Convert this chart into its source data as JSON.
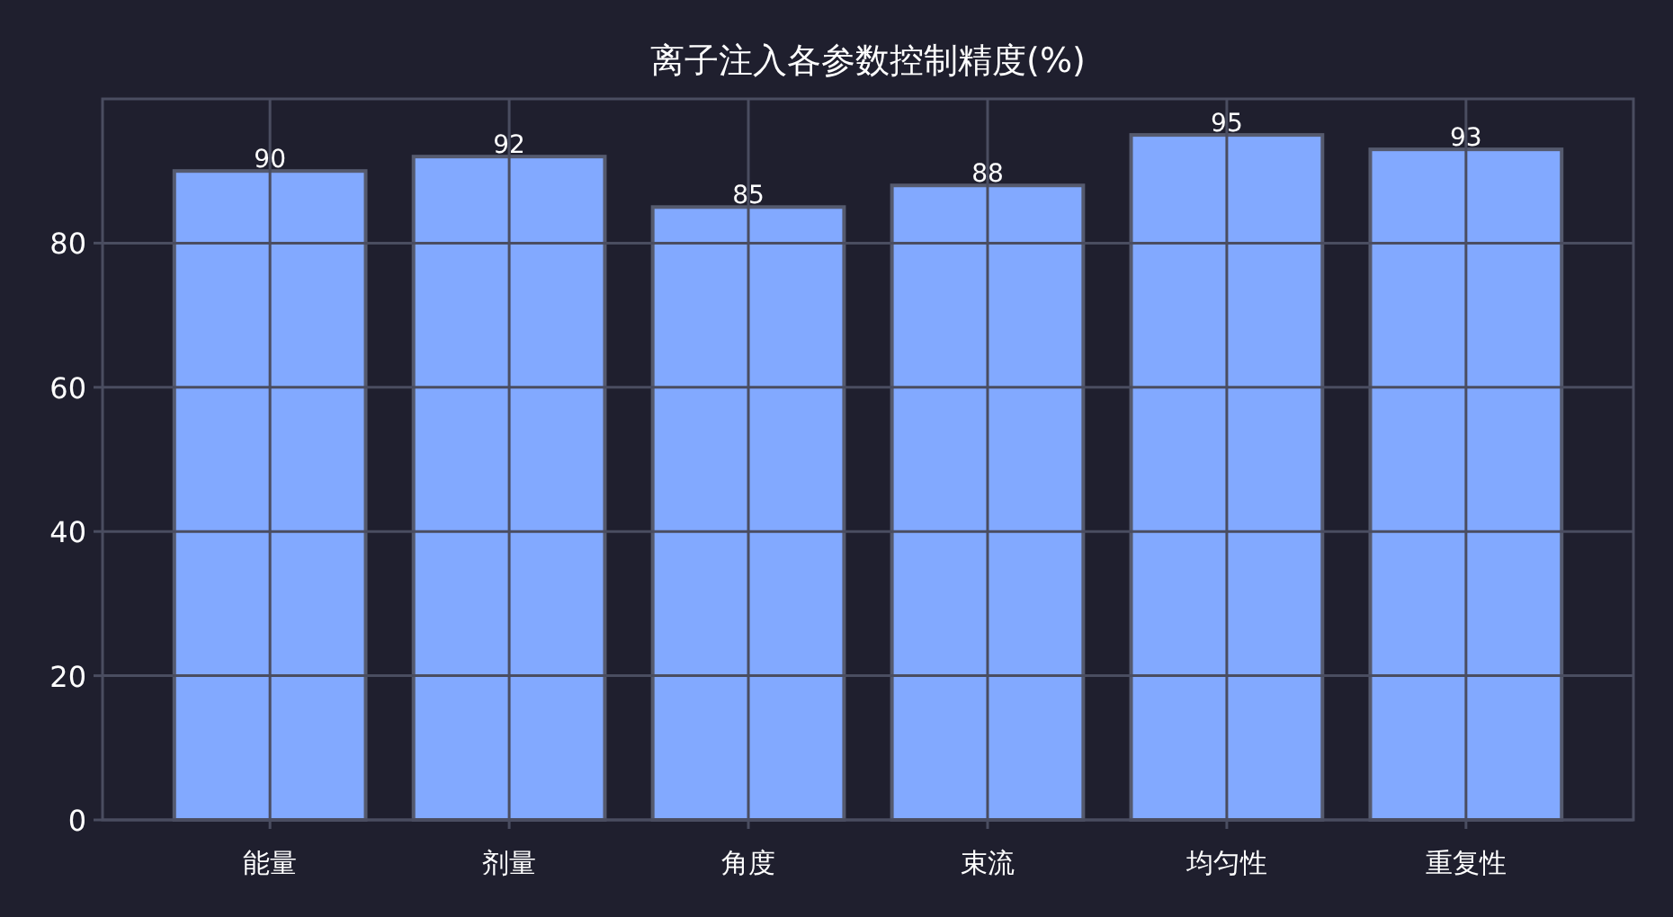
{
  "chart_data": {
    "type": "bar",
    "title": "离子注入各参数控制精度(%)",
    "categories": [
      "能量",
      "剂量",
      "角度",
      "束流",
      "均匀性",
      "重复性"
    ],
    "values": [
      90,
      92,
      85,
      88,
      95,
      93
    ],
    "color": "#82a9ff",
    "ylim": [
      0,
      100
    ],
    "yticks": [
      0,
      20,
      40,
      60,
      80
    ],
    "grid": true,
    "data_labels": true
  }
}
